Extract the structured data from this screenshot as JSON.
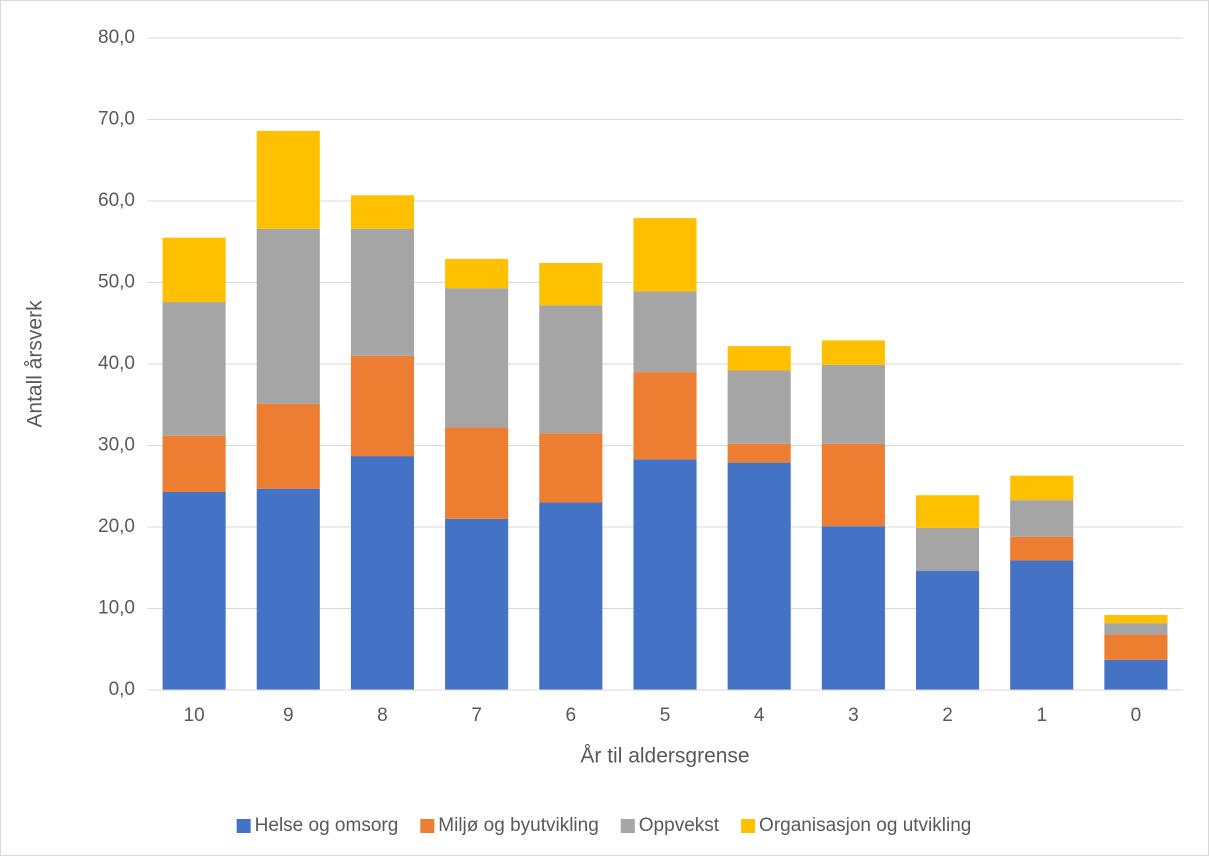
{
  "chart_data": {
    "type": "stacked-bar",
    "x_label": "År til aldersgrense",
    "y_label": "Antall årsverk",
    "categories": [
      "10",
      "9",
      "8",
      "7",
      "6",
      "5",
      "4",
      "3",
      "2",
      "1",
      "0"
    ],
    "series": [
      {
        "name": "Helse og omsorg",
        "color": "#4472c4",
        "values": [
          24.3,
          24.7,
          28.7,
          21.0,
          23.0,
          28.3,
          27.9,
          20.1,
          14.6,
          15.9,
          3.7
        ]
      },
      {
        "name": "Miljø og byutvikling",
        "color": "#ed7d31",
        "values": [
          6.9,
          10.4,
          12.3,
          11.2,
          8.5,
          10.7,
          2.3,
          10.1,
          0,
          2.9,
          3.1
        ]
      },
      {
        "name": "Oppvekst",
        "color": "#a5a5a5",
        "values": [
          16.4,
          21.5,
          15.6,
          17.1,
          15.7,
          9.9,
          9.0,
          9.7,
          5.3,
          4.5,
          1.4
        ]
      },
      {
        "name": "Organisasjon og utvikling",
        "color": "#ffc000",
        "values": [
          7.9,
          12.0,
          4.1,
          3.6,
          5.2,
          9.0,
          3.0,
          3.0,
          4.0,
          3.0,
          1.0
        ]
      }
    ],
    "ylim": [
      0,
      80
    ],
    "yticks": [
      {
        "value": 0,
        "label": "0,0"
      },
      {
        "value": 10,
        "label": "10,0"
      },
      {
        "value": 20,
        "label": "20,0"
      },
      {
        "value": 30,
        "label": "30,0"
      },
      {
        "value": 40,
        "label": "40,0"
      },
      {
        "value": 50,
        "label": "50,0"
      },
      {
        "value": 60,
        "label": "60,0"
      },
      {
        "value": 70,
        "label": "70,0"
      },
      {
        "value": 80,
        "label": "80,0"
      }
    ],
    "grid": true,
    "legend": "bottom"
  }
}
